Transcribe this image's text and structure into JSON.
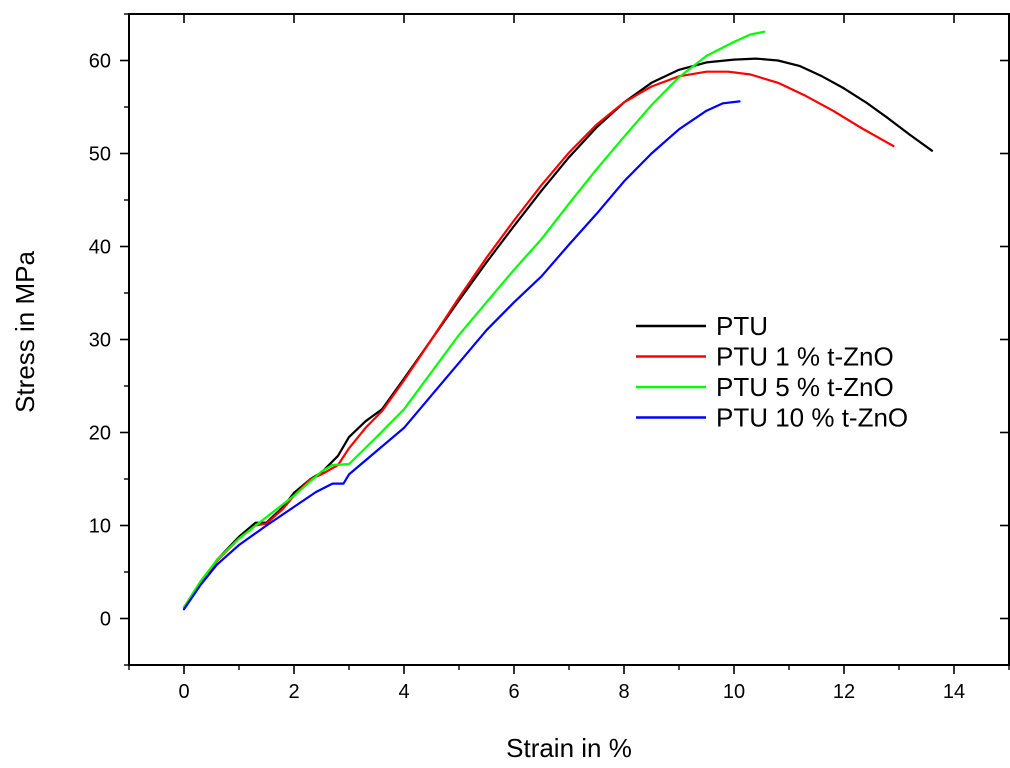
{
  "chart_data": {
    "type": "line",
    "title": "",
    "xlabel": "Strain in %",
    "ylabel": "Stress in MPa",
    "xlim": [
      -1,
      15
    ],
    "ylim": [
      -5,
      65
    ],
    "xticks": [
      0,
      2,
      4,
      6,
      8,
      10,
      12,
      14
    ],
    "xticks_minor": [
      -1,
      1,
      3,
      5,
      7,
      9,
      11,
      13,
      15
    ],
    "yticks": [
      0,
      10,
      20,
      30,
      40,
      50,
      60
    ],
    "yticks_minor": [
      -5,
      5,
      15,
      25,
      35,
      45,
      55,
      65
    ],
    "xtick_labels": [
      "0",
      "2",
      "4",
      "6",
      "8",
      "10",
      "12",
      "14"
    ],
    "ytick_labels": [
      "0",
      "10",
      "20",
      "30",
      "40",
      "50",
      "60"
    ],
    "grid": false,
    "legend_position": "right",
    "series": [
      {
        "name": "PTU",
        "color": "#000000",
        "x": [
          0,
          0.3,
          0.6,
          1.0,
          1.3,
          1.5,
          1.8,
          2.0,
          2.3,
          2.5,
          2.8,
          3.0,
          3.3,
          3.6,
          4.0,
          4.5,
          5.0,
          5.5,
          6.0,
          6.5,
          7.0,
          7.5,
          8.0,
          8.5,
          9.0,
          9.5,
          10.0,
          10.4,
          10.8,
          11.2,
          11.6,
          12.0,
          12.4,
          12.8,
          13.2,
          13.6
        ],
        "y": [
          1.2,
          3.8,
          6.3,
          8.8,
          10.3,
          10.3,
          12.0,
          13.5,
          15.0,
          15.7,
          17.5,
          19.5,
          21.2,
          22.5,
          25.8,
          30.0,
          34.2,
          38.3,
          42.2,
          46.0,
          49.6,
          52.8,
          55.5,
          57.6,
          59.0,
          59.8,
          60.1,
          60.2,
          60.0,
          59.4,
          58.3,
          57.0,
          55.5,
          53.8,
          52.0,
          50.3
        ]
      },
      {
        "name": "PTU 1 % t-ZnO",
        "color": "#ff0000",
        "x": [
          0,
          0.3,
          0.6,
          1.0,
          1.3,
          1.5,
          1.8,
          2.0,
          2.3,
          2.5,
          2.8,
          3.0,
          3.3,
          3.6,
          4.0,
          4.5,
          5.0,
          5.5,
          6.0,
          6.5,
          7.0,
          7.5,
          8.0,
          8.5,
          9.0,
          9.5,
          9.9,
          10.3,
          10.8,
          11.3,
          11.8,
          12.3,
          12.9
        ],
        "y": [
          1.2,
          3.8,
          6.2,
          8.6,
          10.0,
          10.2,
          11.8,
          13.2,
          15.0,
          15.5,
          16.5,
          18.3,
          20.5,
          22.3,
          25.6,
          30.0,
          34.5,
          38.8,
          42.8,
          46.6,
          50.1,
          53.1,
          55.5,
          57.2,
          58.3,
          58.8,
          58.8,
          58.5,
          57.6,
          56.2,
          54.6,
          52.8,
          50.8
        ]
      },
      {
        "name": "PTU 5 % t-ZnO",
        "color": "#00ff00",
        "x": [
          0,
          0.3,
          0.6,
          1.0,
          1.5,
          2.0,
          2.5,
          2.7,
          3.0,
          3.5,
          4.0,
          4.5,
          5.0,
          5.5,
          6.0,
          6.5,
          7.0,
          7.5,
          8.0,
          8.5,
          9.0,
          9.5,
          10.0,
          10.3,
          10.55
        ],
        "y": [
          1.2,
          4.0,
          6.3,
          8.6,
          10.9,
          13.2,
          15.8,
          16.5,
          16.6,
          19.5,
          22.5,
          26.5,
          30.5,
          34.0,
          37.5,
          40.8,
          44.6,
          48.3,
          51.8,
          55.2,
          58.2,
          60.5,
          62.0,
          62.8,
          63.1
        ]
      },
      {
        "name": "PTU 10 % t-ZnO",
        "color": "#0000ff",
        "x": [
          0,
          0.3,
          0.6,
          1.0,
          1.5,
          2.0,
          2.4,
          2.7,
          2.9,
          3.0,
          3.5,
          4.0,
          4.5,
          5.0,
          5.5,
          6.0,
          6.5,
          7.0,
          7.5,
          8.0,
          8.5,
          9.0,
          9.5,
          9.8,
          10.1
        ],
        "y": [
          1.0,
          3.6,
          5.8,
          7.9,
          10.0,
          12.0,
          13.6,
          14.5,
          14.5,
          15.5,
          18.0,
          20.5,
          24.0,
          27.5,
          31.0,
          34.0,
          36.8,
          40.2,
          43.5,
          47.0,
          50.0,
          52.6,
          54.6,
          55.4,
          55.6
        ]
      }
    ]
  }
}
